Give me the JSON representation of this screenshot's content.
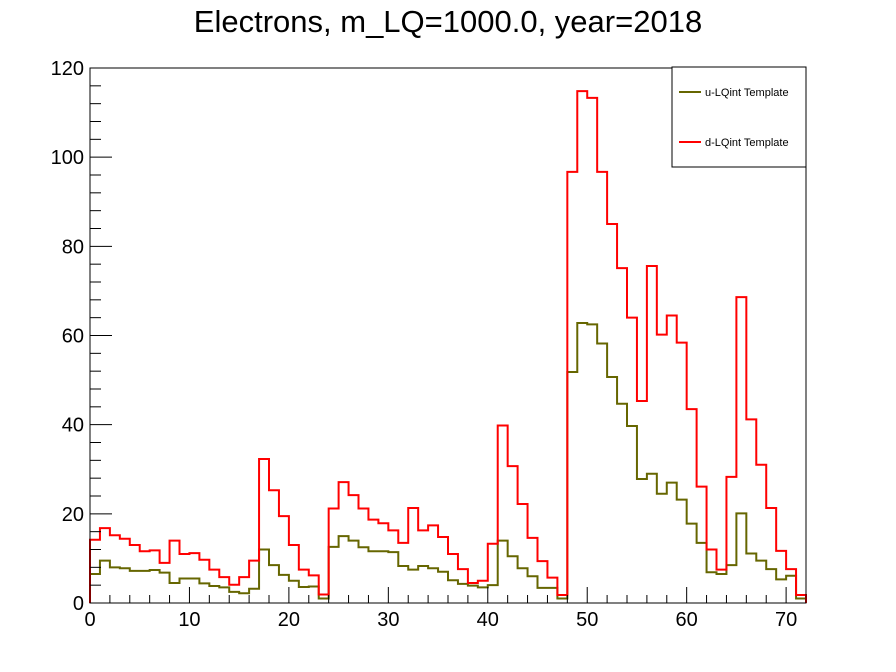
{
  "chart_data": {
    "type": "line",
    "style": "step-histogram",
    "title": "Electrons, m_LQ=1000.0, year=2018",
    "xlabel": "",
    "ylabel": "",
    "xlim": [
      0,
      72
    ],
    "ylim": [
      0,
      120
    ],
    "x_ticks": [
      0,
      10,
      20,
      30,
      40,
      50,
      60,
      70
    ],
    "y_ticks": [
      0,
      20,
      40,
      60,
      80,
      100,
      120
    ],
    "legend_position": "top-right",
    "grid": false,
    "series": [
      {
        "name": "u-LQint Template",
        "color": "#666600",
        "values": [
          6.5,
          9.5,
          8,
          7.8,
          7.2,
          7.2,
          7.4,
          6.8,
          4.5,
          5.5,
          5.5,
          4.4,
          3.8,
          3.5,
          2.5,
          2.2,
          3.2,
          12,
          8.5,
          6.3,
          5,
          3.6,
          3.7,
          1,
          12.6,
          15,
          14,
          12.5,
          11.6,
          11.6,
          11.4,
          8.3,
          7.5,
          8.3,
          7.8,
          7,
          5.1,
          4.3,
          3.9,
          3.5,
          4,
          14,
          10.5,
          7.8,
          6,
          3.4,
          3.4,
          1,
          51.8,
          62.8,
          62.5,
          58.2,
          50.7,
          44.7,
          39.7,
          27.8,
          29,
          24.5,
          27,
          23.2,
          17.8,
          13.5,
          6.9,
          6.5,
          8.5,
          20.1,
          11.1,
          9.5,
          7.6,
          5.3,
          6.1,
          1
        ]
      },
      {
        "name": "d-LQint Template",
        "color": "#ff0000",
        "values": [
          14.2,
          16.8,
          15.2,
          14.4,
          13,
          11.6,
          11.8,
          9,
          14,
          11,
          11.2,
          9.7,
          7.5,
          5.8,
          4.1,
          5.8,
          9.5,
          32.3,
          25.3,
          19.5,
          13,
          7.5,
          6.2,
          1.9,
          21.2,
          27.1,
          24.2,
          21.2,
          18.7,
          17.9,
          16.3,
          13.5,
          21.3,
          16.3,
          17.4,
          14.8,
          11,
          7.6,
          4.5,
          5,
          13.3,
          39.8,
          30.7,
          22.2,
          14.6,
          9.4,
          5.7,
          1.8,
          96.7,
          114.8,
          113.3,
          96.7,
          85,
          75.1,
          64,
          45.3,
          75.6,
          60.2,
          64.5,
          58.4,
          43.5,
          26.1,
          12,
          7.5,
          28.3,
          68.6,
          41.2,
          31,
          21.3,
          11.7,
          7.6,
          1.8
        ]
      }
    ]
  }
}
